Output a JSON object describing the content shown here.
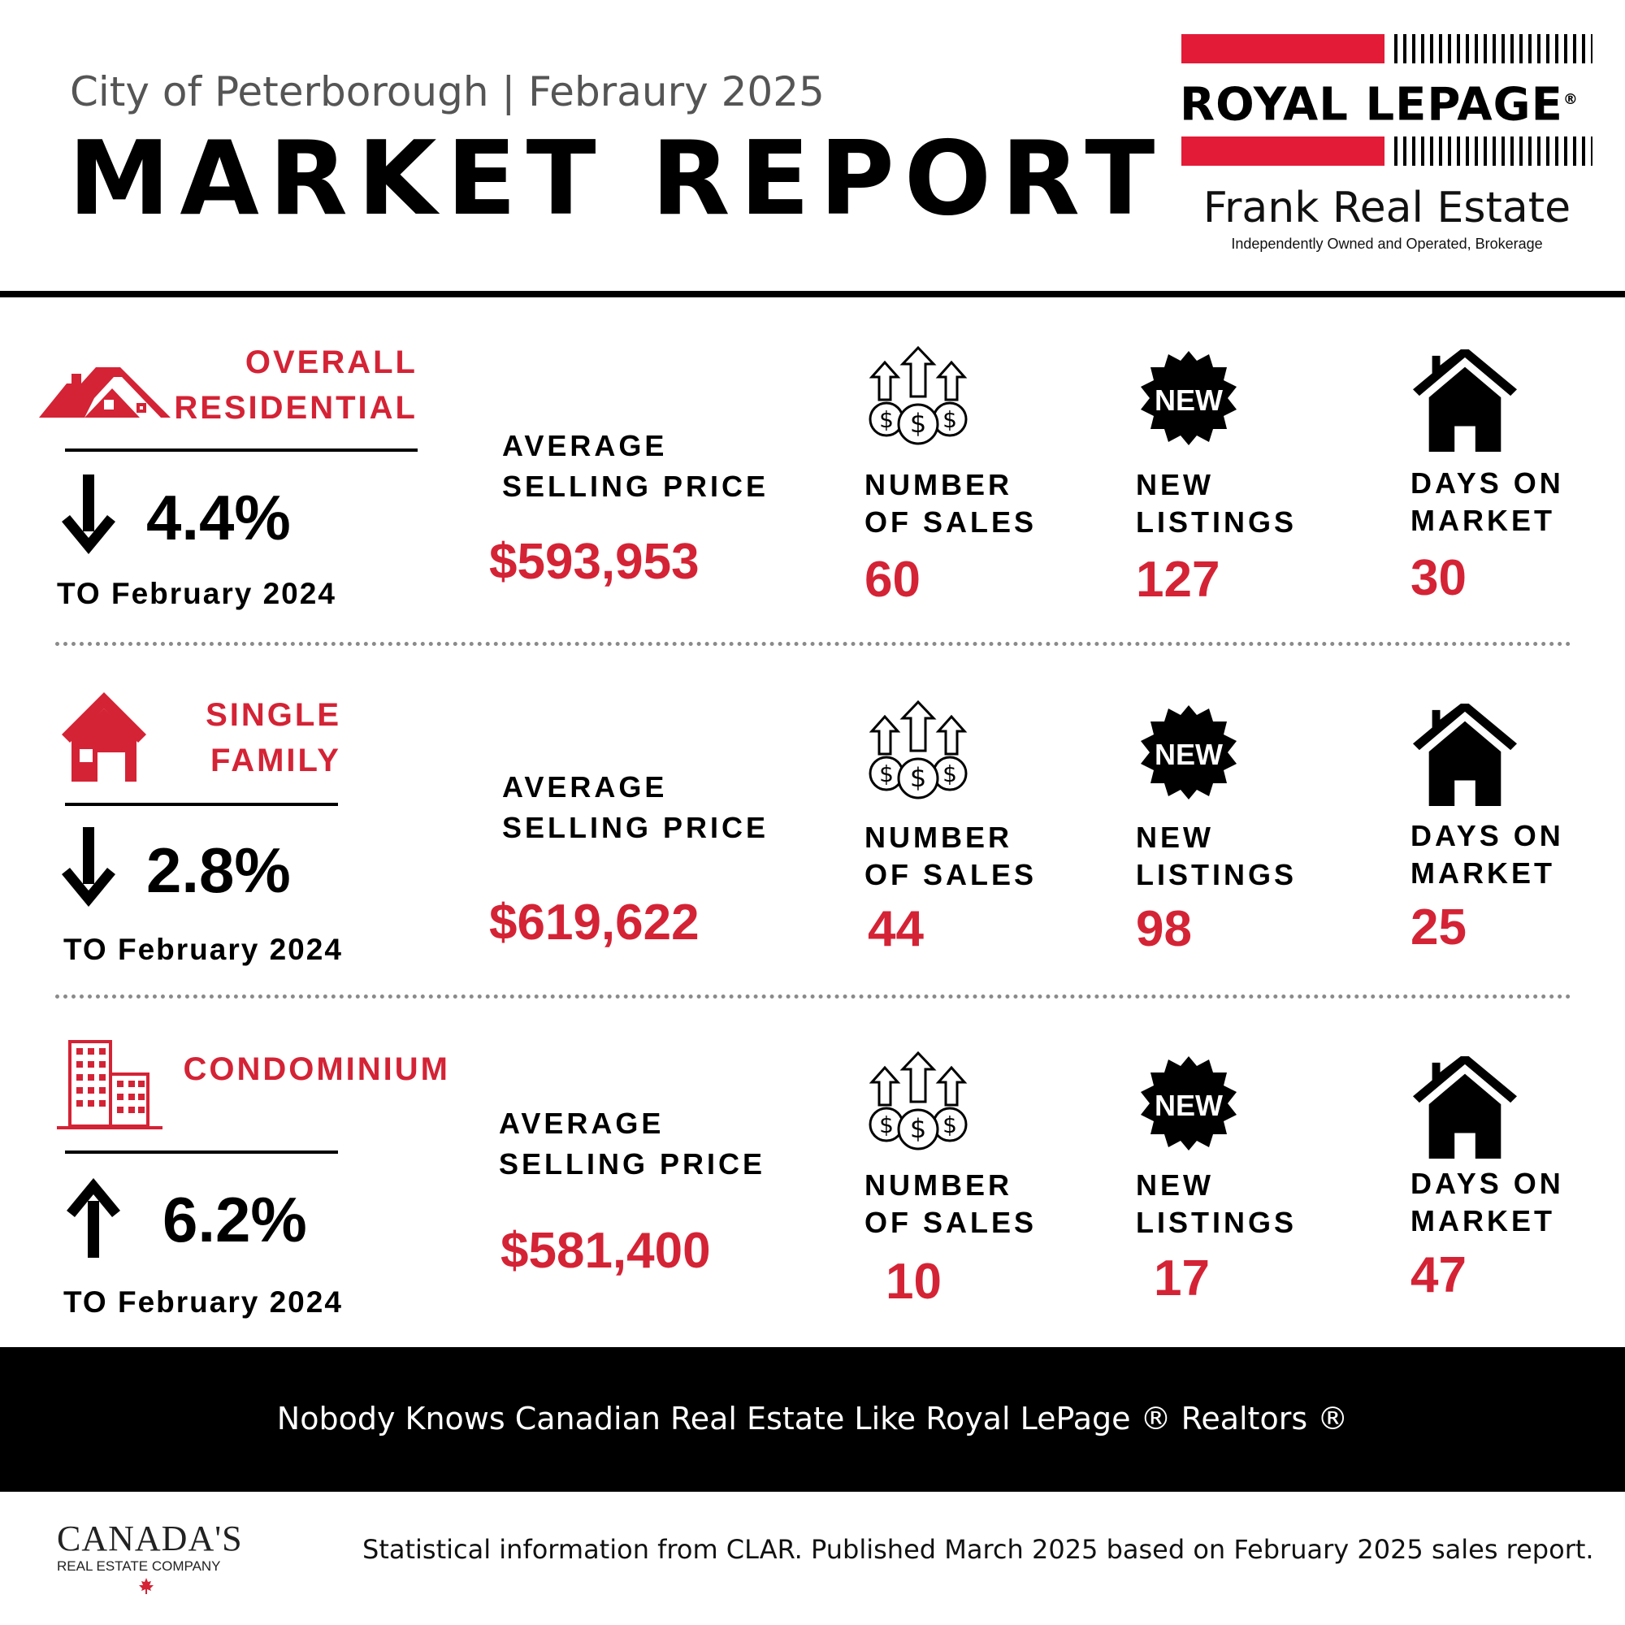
{
  "header": {
    "subtitle": "City of Peterborough | Febraury 2025",
    "title": "MARKET REPORT"
  },
  "brand": {
    "logo_text": "ROYAL LEPAGE",
    "registered": "®",
    "office": "Frank Real Estate",
    "tagline": "Independently Owned and Operated, Brokerage"
  },
  "labels": {
    "avg_price_line1": "AVERAGE",
    "avg_price_line2": "SELLING PRICE",
    "sales_line1": "NUMBER",
    "sales_line2": "OF SALES",
    "listings_line1": "NEW",
    "listings_line2": "LISTINGS",
    "dom_line1": "DAYS ON",
    "dom_line2": "MARKET",
    "new_badge": "NEW"
  },
  "sections": [
    {
      "category_line1": "OVERALL",
      "category_line2": "RESIDENTIAL",
      "trend": "down",
      "change": "4.4%",
      "compare": "TO February 2024",
      "avg_price": "$593,953",
      "sales": "60",
      "new_listings": "127",
      "days_on_market": "30"
    },
    {
      "category_line1": "SINGLE",
      "category_line2": "FAMILY",
      "trend": "down",
      "change": "2.8%",
      "compare": "TO February 2024",
      "avg_price": "$619,622",
      "sales": "44",
      "new_listings": "98",
      "days_on_market": "25"
    },
    {
      "category_line1": "CONDOMINIUM",
      "category_line2": "",
      "trend": "up",
      "change": "6.2%",
      "compare": "TO February 2024",
      "avg_price": "$581,400",
      "sales": "10",
      "new_listings": "17",
      "days_on_market": "47"
    }
  ],
  "footer": {
    "slogan": "Nobody Knows Canadian Real Estate Like Royal LePage ® Realtors ®",
    "company_line1": "CANADA'S",
    "company_line2": "REAL ESTATE COMPANY",
    "source": "Statistical information from CLAR. Published March 2025 based on February 2025 sales report."
  },
  "colors": {
    "accent": "#d42335",
    "text": "#000000",
    "subtitle": "#555555",
    "footer_bg": "#000000",
    "divider_dots": "#8a8a8a"
  },
  "icons": [
    "house-roof-icon",
    "single-house-icon",
    "condo-buildings-icon",
    "arrow-down-icon",
    "arrow-up-icon",
    "money-growth-icon",
    "new-badge-icon",
    "home-icon",
    "maple-leaf-icon"
  ]
}
